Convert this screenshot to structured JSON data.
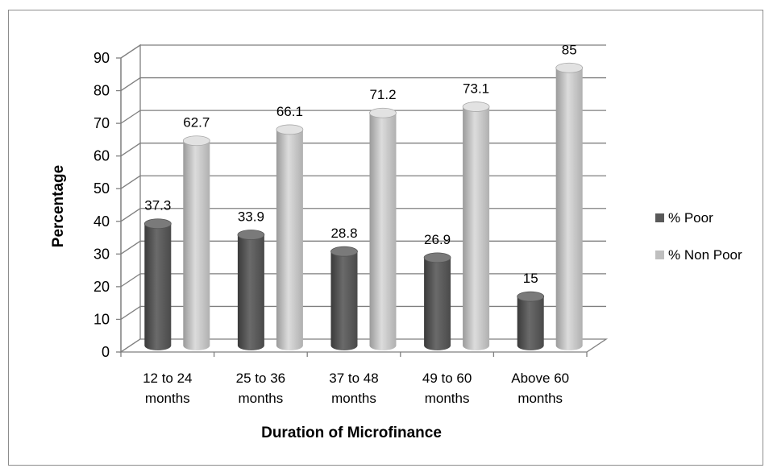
{
  "chart_data": {
    "type": "bar",
    "categories": [
      [
        "12 to 24",
        "months"
      ],
      [
        "25 to 36",
        "months"
      ],
      [
        "37 to 48",
        "months"
      ],
      [
        "49 to 60",
        "months"
      ],
      [
        "Above 60",
        "months"
      ]
    ],
    "series": [
      {
        "name": "% Poor",
        "values": [
          37.3,
          33.9,
          28.8,
          26.9,
          15
        ],
        "color": "#595959"
      },
      {
        "name": "% Non Poor",
        "values": [
          62.7,
          66.1,
          71.2,
          73.1,
          85
        ],
        "color": "#bfbfbf"
      }
    ],
    "xlabel": "Duration of Microfinance",
    "ylabel": "Percentage",
    "ylim": [
      0,
      90
    ],
    "yticks": [
      0,
      10,
      20,
      30,
      40,
      50,
      60,
      70,
      80,
      90
    ],
    "grid": true,
    "legend_position": "right",
    "style": "3d-cylinder"
  }
}
